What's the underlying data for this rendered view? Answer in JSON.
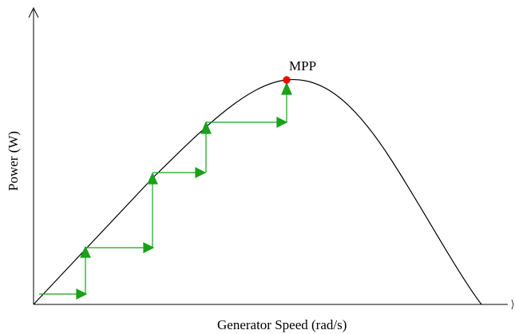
{
  "figure": {
    "xlabel": "Generator Speed (rad/s)",
    "ylabel": "Power (W)",
    "peak_label": "MPP"
  },
  "colors": {
    "curve": "#000000",
    "axes": "#000000",
    "steps": "#1aa01a",
    "arrowheads": "#1aa01a",
    "peak_marker": "#ff0000"
  },
  "icons": {
    "peak_marker": "red-dot",
    "step_arrows": "triangle-arrowheads"
  }
}
